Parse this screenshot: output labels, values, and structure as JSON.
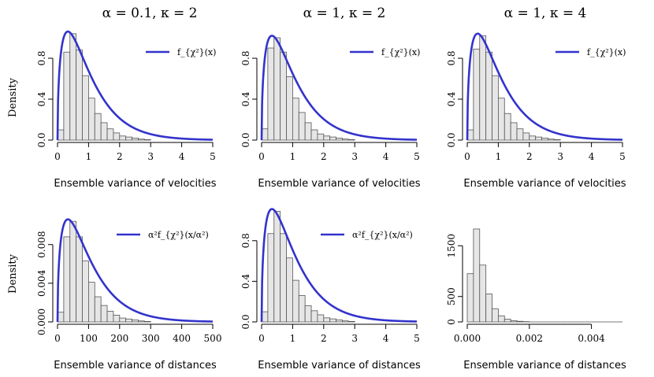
{
  "figure": {
    "ylabel": "Density",
    "line_color": "#3333cc",
    "bar_fill": "#e6e6e6",
    "bar_stroke": "#555555"
  },
  "chart_data": [
    {
      "type": "histogram",
      "title": "α = 0.1, κ = 2",
      "xlabel": "Ensemble variance of velocities",
      "ylabel": "Density",
      "legend": "f_{χ²}(x)",
      "legend_position": "top-right",
      "xlim": [
        0,
        5
      ],
      "ylim": [
        0,
        1.0
      ],
      "xticks": [
        0,
        1,
        2,
        3,
        4,
        5
      ],
      "xtick_labels": [
        "0",
        "1",
        "2",
        "3",
        "4",
        "5"
      ],
      "yticks": [
        0.0,
        0.4,
        0.8
      ],
      "ytick_labels": [
        "0.0",
        "0.4",
        "0.8"
      ],
      "bin_width": 0.2,
      "bins_start": 0,
      "density": [
        0.1,
        0.86,
        1.04,
        0.88,
        0.63,
        0.41,
        0.26,
        0.17,
        0.11,
        0.07,
        0.04,
        0.03,
        0.02,
        0.01,
        0.005
      ],
      "curve": "chi2"
    },
    {
      "type": "histogram",
      "title": "α = 1, κ = 2",
      "xlabel": "Ensemble variance of velocities",
      "ylabel": "",
      "legend": "f_{χ²}(x)",
      "legend_position": "top-right",
      "xlim": [
        0,
        5
      ],
      "ylim": [
        0,
        1.0
      ],
      "xticks": [
        0,
        1,
        2,
        3,
        4,
        5
      ],
      "xtick_labels": [
        "0",
        "1",
        "2",
        "3",
        "4",
        "5"
      ],
      "yticks": [
        0.0,
        0.4,
        0.8
      ],
      "ytick_labels": [
        "0.0",
        "0.4",
        "0.8"
      ],
      "bin_width": 0.2,
      "bins_start": 0,
      "density": [
        0.11,
        0.9,
        1.0,
        0.86,
        0.62,
        0.41,
        0.27,
        0.17,
        0.1,
        0.06,
        0.04,
        0.03,
        0.02,
        0.01,
        0.005
      ],
      "curve": "chi2"
    },
    {
      "type": "histogram",
      "title": "α = 1, κ = 4",
      "xlabel": "Ensemble variance of velocities",
      "ylabel": "",
      "legend": "f_{χ²}(x)",
      "legend_position": "top-right",
      "xlim": [
        0,
        5
      ],
      "ylim": [
        0,
        1.0
      ],
      "xticks": [
        0,
        1,
        2,
        3,
        4,
        5
      ],
      "xtick_labels": [
        "0",
        "1",
        "2",
        "3",
        "4",
        "5"
      ],
      "yticks": [
        0.0,
        0.4,
        0.8
      ],
      "ytick_labels": [
        "0.0",
        "0.4",
        "0.8"
      ],
      "bin_width": 0.2,
      "bins_start": 0,
      "density": [
        0.1,
        0.89,
        1.02,
        0.86,
        0.63,
        0.41,
        0.26,
        0.17,
        0.11,
        0.07,
        0.04,
        0.03,
        0.02,
        0.01,
        0.005
      ],
      "curve": "chi2"
    },
    {
      "type": "histogram",
      "title": "",
      "xlabel": "Ensemble variance of distances",
      "ylabel": "Density",
      "legend": "α²f_{χ²}(x/α²)",
      "legend_position": "top-right",
      "xlim": [
        0,
        500
      ],
      "ylim": [
        0,
        0.0105
      ],
      "xticks": [
        0,
        100,
        200,
        300,
        400,
        500
      ],
      "xtick_labels": [
        "0",
        "100",
        "200",
        "300",
        "400",
        "500"
      ],
      "yticks": [
        0.0,
        0.004,
        0.008
      ],
      "ytick_labels": [
        "0.000",
        "0.004",
        "0.008"
      ],
      "bin_width": 20,
      "bins_start": 0,
      "density": [
        0.001,
        0.0088,
        0.0104,
        0.0088,
        0.0063,
        0.0041,
        0.0026,
        0.0017,
        0.0011,
        0.0007,
        0.0004,
        0.0003,
        0.0002,
        0.0001,
        5e-05
      ],
      "curve": "chi2_scaled"
    },
    {
      "type": "histogram",
      "title": "",
      "xlabel": "Ensemble variance of distances",
      "ylabel": "",
      "legend": "α²f_{χ²}(x/α²)",
      "legend_position": "top-right",
      "xlim": [
        0,
        5
      ],
      "ylim": [
        0,
        1.0
      ],
      "xticks": [
        0,
        1,
        2,
        3,
        4,
        5
      ],
      "xtick_labels": [
        "0",
        "1",
        "2",
        "3",
        "4",
        "5"
      ],
      "yticks": [
        0.0,
        0.4,
        0.8
      ],
      "ytick_labels": [
        "0.0",
        "0.4",
        "0.8"
      ],
      "bin_width": 0.2,
      "bins_start": 0,
      "density": [
        0.1,
        0.87,
        1.09,
        0.87,
        0.63,
        0.41,
        0.26,
        0.16,
        0.11,
        0.07,
        0.04,
        0.03,
        0.02,
        0.01,
        0.005
      ],
      "curve": "chi2"
    },
    {
      "type": "histogram",
      "title": "",
      "xlabel": "Ensemble variance of distances",
      "ylabel": "",
      "legend": "",
      "xlim": [
        0,
        0.005
      ],
      "ylim": [
        0,
        2000
      ],
      "xticks": [
        0.0,
        0.002,
        0.004
      ],
      "xtick_labels": [
        "0.000",
        "0.002",
        "0.004"
      ],
      "yticks": [
        0,
        500,
        1500
      ],
      "ytick_labels": [
        "0",
        "500",
        "1500"
      ],
      "bin_width": 0.0002,
      "bins_start": 0,
      "density": [
        950,
        1830,
        1120,
        550,
        260,
        120,
        55,
        25,
        12,
        6,
        3,
        2,
        1,
        1,
        1,
        0,
        0,
        0,
        0,
        0,
        0,
        0,
        0,
        0,
        0
      ],
      "curve": "none"
    }
  ]
}
